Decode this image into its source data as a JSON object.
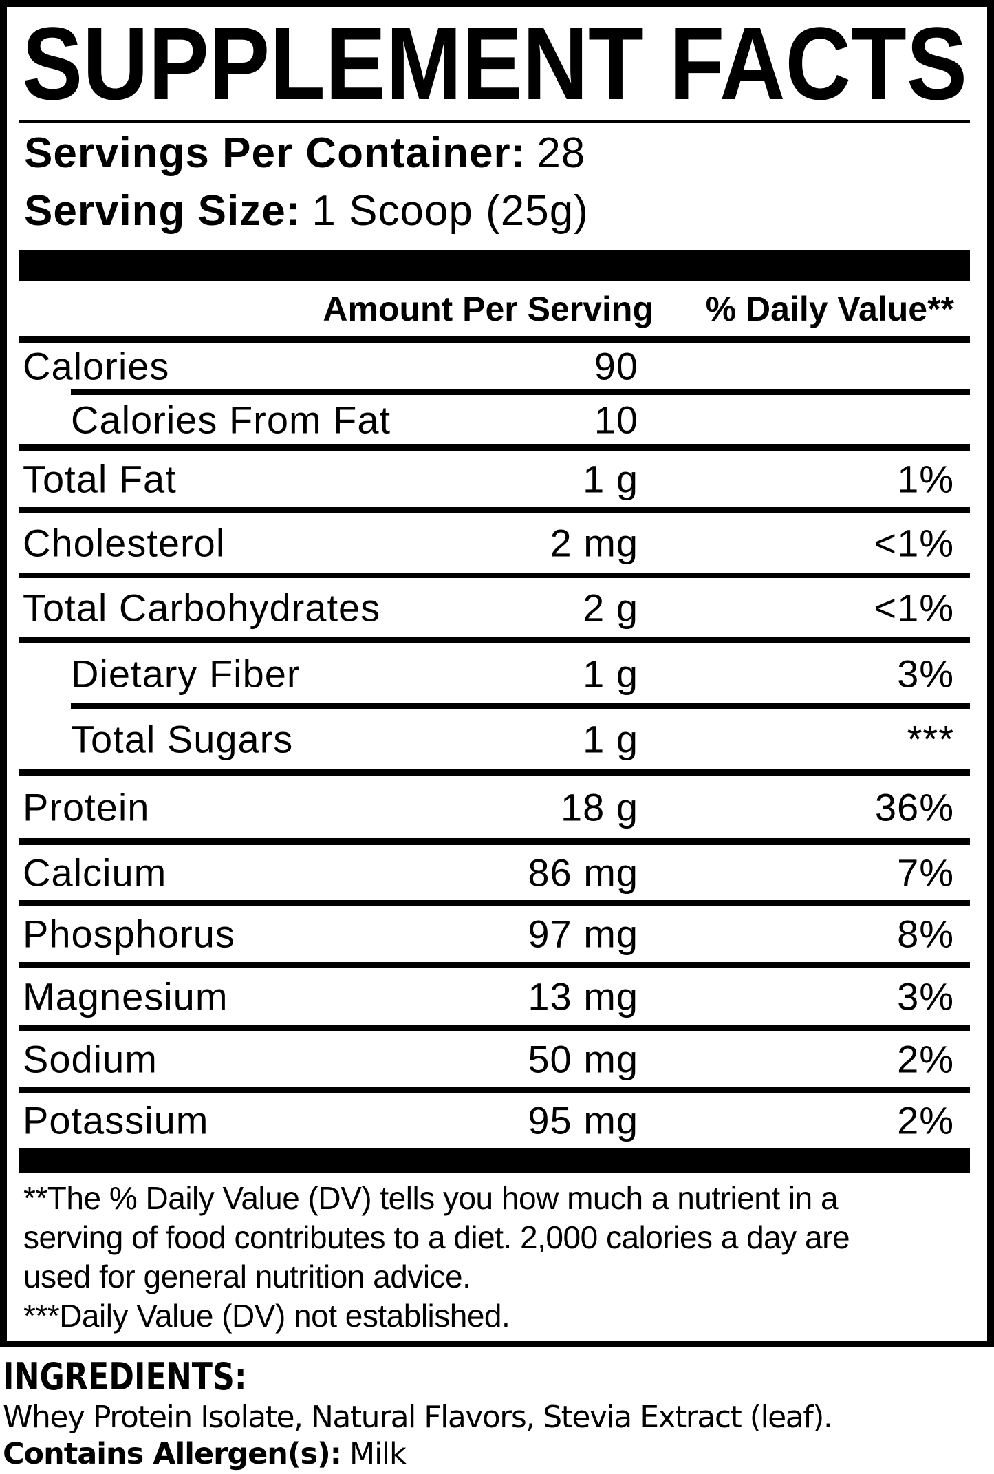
{
  "label": {
    "title": "SUPPLEMENT FACTS",
    "servings_per_container_label": "Servings Per Container:",
    "servings_per_container_value": "28",
    "serving_size_label": "Serving Size:",
    "serving_size_value": "1 Scoop (25g)",
    "columns": {
      "amount": "Amount Per Serving",
      "dv": "% Daily Value**"
    },
    "rows": [
      {
        "name": "Calories",
        "amount": "90",
        "dv": "",
        "indent": false
      },
      {
        "name": "Calories From Fat",
        "amount": "10",
        "dv": "",
        "indent": true
      },
      {
        "name": "Total Fat",
        "amount": "1 g",
        "dv": "1%",
        "indent": false
      },
      {
        "name": "Cholesterol",
        "amount": "2 mg",
        "dv": "<1%",
        "indent": false
      },
      {
        "name": "Total Carbohydrates",
        "amount": "2 g",
        "dv": "<1%",
        "indent": false
      },
      {
        "name": "Dietary Fiber",
        "amount": "1 g",
        "dv": "3%",
        "indent": true
      },
      {
        "name": "Total Sugars",
        "amount": "1 g",
        "dv": "***",
        "indent": true
      },
      {
        "name": "Protein",
        "amount": "18 g",
        "dv": "36%",
        "indent": false
      },
      {
        "name": "Calcium",
        "amount": "86 mg",
        "dv": "7%",
        "indent": false
      },
      {
        "name": "Phosphorus",
        "amount": "97 mg",
        "dv": "8%",
        "indent": false
      },
      {
        "name": "Magnesium",
        "amount": "13 mg",
        "dv": "3%",
        "indent": false
      },
      {
        "name": "Sodium",
        "amount": "50 mg",
        "dv": "2%",
        "indent": false
      },
      {
        "name": "Potassium",
        "amount": "95 mg",
        "dv": "2%",
        "indent": false
      }
    ],
    "footnotes": [
      "**The % Daily Value (DV) tells you how much a nutrient in a",
      "serving of food contributes to a diet. 2,000 calories a day are",
      "used for general nutrition advice.",
      "***Daily Value (DV) not established."
    ]
  },
  "ingredients": {
    "heading": "INGREDIENTS:",
    "list": "Whey Protein Isolate, Natural Flavors, Stevia Extract (leaf).",
    "allergen_label": "Contains Allergen(s):",
    "allergen_value": "Milk"
  },
  "colors": {
    "text": "#000000",
    "background": "#ffffff"
  }
}
